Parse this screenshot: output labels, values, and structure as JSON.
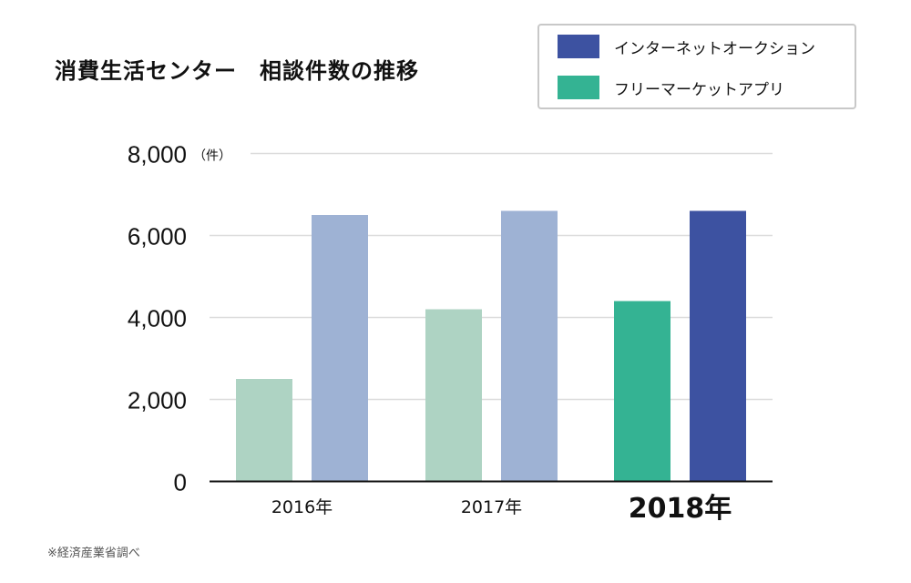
{
  "chart_data": {
    "type": "bar",
    "title": "消費生活センター　相談件数の推移",
    "categories": [
      "2016年",
      "2017年",
      "2018年"
    ],
    "highlighted_category": "2018年",
    "series": [
      {
        "name": "フリーマーケットアプリ",
        "values": [
          2500,
          4200,
          4400
        ],
        "color": "#34b393",
        "faded_color": "#aed3c3"
      },
      {
        "name": "インターネットオークション",
        "values": [
          6500,
          6600,
          6600
        ],
        "color": "#3d52a1",
        "faded_color": "#9eb2d4"
      }
    ],
    "legend_order": [
      1,
      0
    ],
    "yticks": [
      "0",
      "2,000",
      "4,000",
      "6,000",
      "8,000"
    ],
    "ytick_values": [
      0,
      2000,
      4000,
      6000,
      8000
    ],
    "yunit": "（件）",
    "ylim": [
      0,
      8000
    ],
    "grid": true,
    "legend_position": "top-right",
    "source_note": "※経済産業省調べ"
  }
}
